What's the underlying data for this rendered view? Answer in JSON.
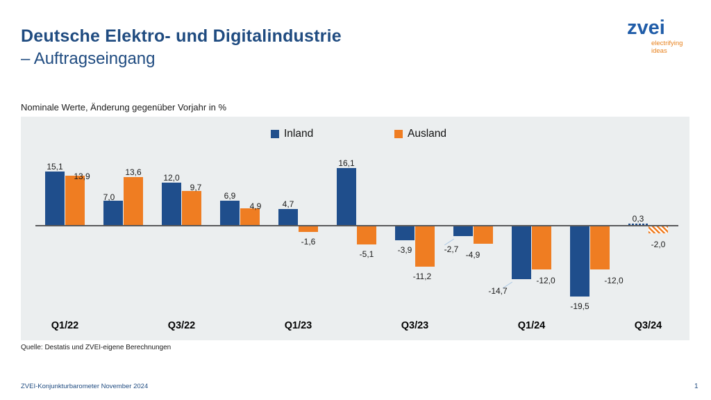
{
  "page": {
    "title_line1": "Deutsche Elektro- und Digitalindustrie",
    "title_line2": "– Auftragseingang",
    "subtitle": "Nominale Werte, Änderung gegenüber Vorjahr in %",
    "source": "Quelle: Destatis und ZVEI-eigene Berechnungen",
    "footer_left": "ZVEI-Konjunkturbarometer November 2024",
    "page_number": "1"
  },
  "logo": {
    "wordmark": "zvei",
    "tagline_line1": "electrifying",
    "tagline_line2": "ideas"
  },
  "colors": {
    "title_blue": "#1F4B80",
    "inland": "#1F4E8C",
    "ausland": "#EF7D22",
    "chart_bg": "#EBEEEF",
    "axis": "#58585A",
    "leader_line": "#A8C6E4",
    "logo_blue": "#1F5CA8",
    "logo_orange": "#E8821E",
    "footer_blue": "#1F4B80"
  },
  "chart_data": {
    "type": "bar",
    "title": "",
    "subtitle": "Nominale Werte, Änderung gegenüber Vorjahr in %",
    "unit": "%",
    "categories": [
      "Q1/22",
      "Q2/22",
      "Q3/22",
      "Q4/22",
      "Q1/23",
      "Q2/23",
      "Q3/23",
      "Q4/23",
      "Q1/24",
      "Q2/24",
      "Q3/24"
    ],
    "x_tick_labels": [
      "Q1/22",
      "Q3/22",
      "Q1/23",
      "Q3/23",
      "Q1/24",
      "Q3/24"
    ],
    "series": [
      {
        "name": "Inland",
        "color": "#1F4E8C",
        "values": [
          15.1,
          7.0,
          12.0,
          6.9,
          4.7,
          16.1,
          -3.9,
          -2.7,
          -14.7,
          -19.5,
          0.3
        ]
      },
      {
        "name": "Ausland",
        "color": "#EF7D22",
        "values": [
          13.9,
          13.6,
          9.7,
          4.9,
          -1.6,
          -5.1,
          -11.2,
          -4.9,
          -12.0,
          -12.0,
          -2.0
        ]
      }
    ],
    "hatched_categories": [
      "Q3/24"
    ],
    "decimal_separator": ",",
    "legend_position": "top-center",
    "grid": false,
    "baseline": 0,
    "ylim": [
      -22,
      18
    ]
  }
}
